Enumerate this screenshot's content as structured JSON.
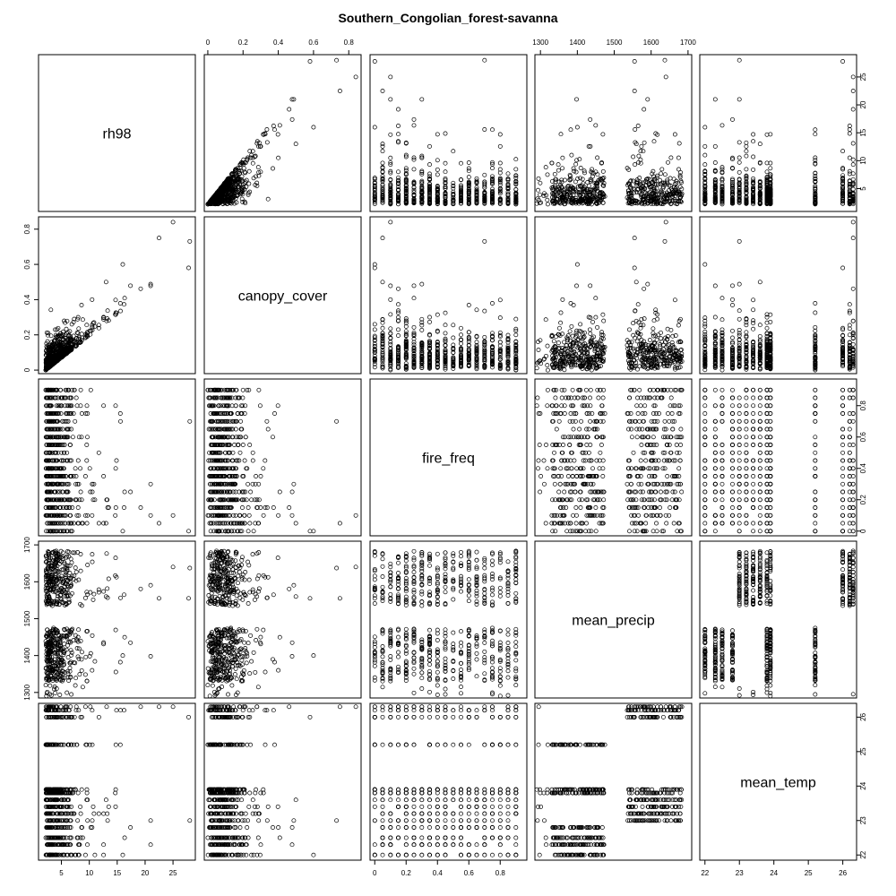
{
  "chart_data": {
    "type": "scatter",
    "title": "Southern_Congolian_forest-savanna",
    "variables": [
      "rh98",
      "canopy_cover",
      "fire_freq",
      "mean_precip",
      "mean_temp"
    ],
    "axis_ticks": {
      "rh98": [
        5,
        10,
        15,
        20,
        25
      ],
      "canopy_cover": [
        0.0,
        0.2,
        0.4,
        0.6,
        0.8
      ],
      "fire_freq": [
        0.0,
        0.2,
        0.4,
        0.6,
        0.8
      ],
      "mean_precip": [
        1300,
        1400,
        1500,
        1600,
        1700
      ],
      "mean_temp": [
        22,
        23,
        24,
        25,
        26
      ]
    },
    "axis_ranges": {
      "rh98": [
        0.9,
        29
      ],
      "canopy_cover": [
        -0.02,
        0.87
      ],
      "fire_freq": [
        -0.03,
        0.97
      ],
      "mean_precip": [
        1285,
        1710
      ],
      "mean_temp": [
        21.85,
        26.4
      ]
    },
    "fire_freq_levels": [
      0,
      0.05,
      0.1,
      0.15,
      0.2,
      0.25,
      0.3,
      0.35,
      0.4,
      0.45,
      0.5,
      0.55,
      0.6,
      0.65,
      0.7,
      0.75,
      0.8,
      0.85,
      0.9
    ],
    "mean_temp_levels": [
      22.0,
      22.3,
      22.5,
      22.8,
      23.0,
      23.2,
      23.4,
      23.6,
      23.8,
      23.9,
      25.2,
      26.0,
      26.2,
      26.3
    ],
    "point_samples": [
      {
        "rh98": 2.5,
        "canopy_cover": 0.01,
        "fire_freq": 0.85,
        "mean_precip": 1610,
        "mean_temp": 26.2
      },
      {
        "rh98": 3.1,
        "canopy_cover": 0.03,
        "fire_freq": 0.6,
        "mean_precip": 1580,
        "mean_temp": 26.0
      },
      {
        "rh98": 4.0,
        "canopy_cover": 0.08,
        "fire_freq": 0.45,
        "mean_precip": 1650,
        "mean_temp": 26.3
      },
      {
        "rh98": 5.2,
        "canopy_cover": 0.15,
        "fire_freq": 0.3,
        "mean_precip": 1420,
        "mean_temp": 22.5
      },
      {
        "rh98": 6.5,
        "canopy_cover": 0.22,
        "fire_freq": 0.2,
        "mean_precip": 1380,
        "mean_temp": 22.3
      },
      {
        "rh98": 8.0,
        "canopy_cover": 0.3,
        "fire_freq": 0.15,
        "mean_precip": 1450,
        "mean_temp": 23.8
      },
      {
        "rh98": 10.5,
        "canopy_cover": 0.4,
        "fire_freq": 0.1,
        "mean_precip": 1360,
        "mean_temp": 22.8
      },
      {
        "rh98": 13.0,
        "canopy_cover": 0.5,
        "fire_freq": 0.05,
        "mean_precip": 1560,
        "mean_temp": 23.6
      },
      {
        "rh98": 16.0,
        "canopy_cover": 0.6,
        "fire_freq": 0.0,
        "mean_precip": 1400,
        "mean_temp": 22.0
      },
      {
        "rh98": 2.2,
        "canopy_cover": 0.0,
        "fire_freq": 0.9,
        "mean_precip": 1320,
        "mean_temp": 25.2
      },
      {
        "rh98": 3.5,
        "canopy_cover": 0.05,
        "fire_freq": 0.7,
        "mean_precip": 1470,
        "mean_temp": 23.9
      },
      {
        "rh98": 22.5,
        "canopy_cover": 0.75,
        "fire_freq": 0.05,
        "mean_precip": 1555,
        "mean_temp": 26.3
      },
      {
        "rh98": 27.8,
        "canopy_cover": 0.58,
        "fire_freq": 0.0,
        "mean_precip": 1555,
        "mean_temp": 26.0
      },
      {
        "rh98": 25.0,
        "canopy_cover": 0.84,
        "fire_freq": 0.1,
        "mean_precip": 1640,
        "mean_temp": 26.3
      }
    ],
    "legend": "none",
    "grid": false
  }
}
